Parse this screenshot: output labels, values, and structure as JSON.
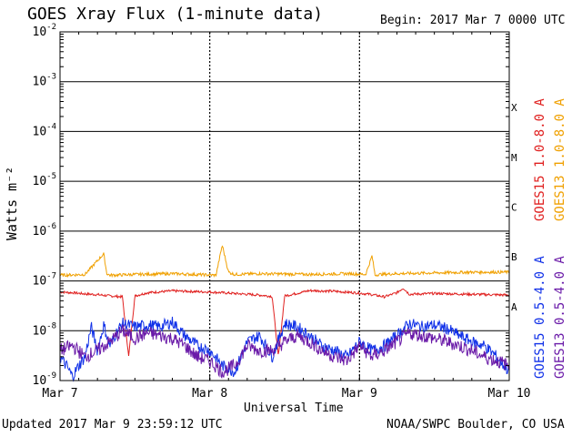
{
  "header": {
    "title": "GOES Xray Flux (1-minute data)",
    "begin": "Begin:  2017 Mar 7 0000 UTC"
  },
  "footer": {
    "updated": "Updated 2017 Mar  9 23:59:12 UTC",
    "credit": "NOAA/SWPC Boulder, CO USA"
  },
  "chart_data": {
    "type": "line",
    "xlabel": "Universal Time",
    "ylabel": "Watts m⁻²",
    "yscale": "log",
    "ylim": [
      1e-09,
      0.01
    ],
    "xlim": [
      0,
      72
    ],
    "x_units": "hours since 2017 Mar 7 0000 UTC",
    "x_ticks": [
      {
        "value": 0,
        "label": "Mar 7"
      },
      {
        "value": 24,
        "label": "Mar 8"
      },
      {
        "value": 48,
        "label": "Mar 9"
      },
      {
        "value": 72,
        "label": "Mar 10"
      }
    ],
    "y_ticks": [
      {
        "exp": -2,
        "label": "10",
        "sup": "-2"
      },
      {
        "exp": -3,
        "label": "10",
        "sup": "-3"
      },
      {
        "exp": -4,
        "label": "10",
        "sup": "-4"
      },
      {
        "exp": -5,
        "label": "10",
        "sup": "-5"
      },
      {
        "exp": -6,
        "label": "10",
        "sup": "-6"
      },
      {
        "exp": -7,
        "label": "10",
        "sup": "-7"
      },
      {
        "exp": -8,
        "label": "10",
        "sup": "-8"
      },
      {
        "exp": -9,
        "label": "10",
        "sup": "-9"
      }
    ],
    "flare_classes": [
      {
        "label": "X",
        "exp": -3.5
      },
      {
        "label": "M",
        "exp": -4.5
      },
      {
        "label": "C",
        "exp": -5.5
      },
      {
        "label": "B",
        "exp": -6.5
      },
      {
        "label": "A",
        "exp": -7.5
      }
    ],
    "grid": true,
    "series": [
      {
        "name": "GOES15 1.0-8.0 A",
        "color": "#e0201f",
        "x": [
          0,
          2,
          4,
          6,
          8,
          10,
          11,
          12,
          14,
          18,
          24,
          28,
          32,
          34,
          35,
          36,
          40,
          44,
          48,
          50,
          52,
          54,
          55,
          56,
          60,
          66,
          72
        ],
        "y": [
          6e-08,
          5.8e-08,
          5.5e-08,
          5.3e-08,
          5e-08,
          4.8e-08,
          3e-09,
          5e-08,
          5.8e-08,
          6.3e-08,
          6e-08,
          5.6e-08,
          5.2e-08,
          4.9e-08,
          3e-09,
          5e-08,
          6.4e-08,
          6.2e-08,
          5.7e-08,
          5.3e-08,
          4.8e-08,
          5.8e-08,
          7.2e-08,
          5.4e-08,
          5.6e-08,
          5.4e-08,
          5.2e-08
        ]
      },
      {
        "name": "GOES13 1.0-8.0 A",
        "color": "#f0a000",
        "x": [
          0,
          4,
          7,
          7.5,
          8,
          12,
          18,
          25,
          26,
          27,
          28,
          32,
          40,
          46,
          49,
          50,
          50.5,
          51,
          54,
          60,
          66,
          72
        ],
        "y": [
          1.3e-07,
          1.35e-07,
          3.5e-07,
          1.4e-07,
          1.3e-07,
          1.35e-07,
          1.4e-07,
          1.3e-07,
          5.2e-07,
          1.5e-07,
          1.35e-07,
          1.4e-07,
          1.35e-07,
          1.4e-07,
          1.35e-07,
          3.2e-07,
          1.3e-07,
          1.35e-07,
          1.4e-07,
          1.45e-07,
          1.5e-07,
          1.5e-07
        ]
      },
      {
        "name": "GOES15 0.5-4.0 A",
        "color": "#1030e8",
        "x": [
          0,
          1,
          2,
          3,
          4,
          5,
          6,
          7,
          8,
          9,
          10,
          12,
          14,
          16,
          18,
          20,
          22,
          24,
          26,
          28,
          30,
          32,
          34,
          36,
          38,
          40,
          42,
          44,
          46,
          48,
          50,
          52,
          54,
          56,
          58,
          60,
          62,
          64,
          66,
          68,
          70,
          72
        ],
        "y": [
          3e-09,
          2e-09,
          1.2e-09,
          2e-09,
          3e-09,
          1.2e-08,
          4e-09,
          1.3e-08,
          5e-09,
          9e-09,
          1.4e-08,
          1.2e-08,
          1.3e-08,
          1.2e-08,
          1.5e-08,
          8e-09,
          5e-09,
          4e-09,
          2e-09,
          1.5e-09,
          6e-09,
          8e-09,
          3e-09,
          1.4e-08,
          1.2e-08,
          8e-09,
          5e-09,
          4e-09,
          3e-09,
          6e-09,
          4e-09,
          5e-09,
          8e-09,
          1.4e-08,
          1.2e-08,
          1.3e-08,
          1.1e-08,
          8e-09,
          6e-09,
          5e-09,
          3e-09,
          1.5e-09
        ]
      },
      {
        "name": "GOES13 0.5-4.0 A",
        "color": "#6a1aa8",
        "x": [
          0,
          2,
          4,
          6,
          8,
          10,
          12,
          14,
          16,
          18,
          20,
          22,
          24,
          26,
          28,
          30,
          32,
          34,
          36,
          38,
          40,
          42,
          44,
          46,
          48,
          50,
          52,
          54,
          56,
          58,
          60,
          62,
          64,
          66,
          68,
          70,
          72
        ],
        "y": [
          4e-09,
          5e-09,
          3e-09,
          4e-09,
          6e-09,
          1e-08,
          7e-09,
          9e-09,
          8e-09,
          7e-09,
          5e-09,
          3e-09,
          2.5e-09,
          1.5e-09,
          2e-09,
          5e-09,
          4e-09,
          4e-09,
          6e-09,
          8e-09,
          6e-09,
          4e-09,
          3e-09,
          2.5e-09,
          5e-09,
          3e-09,
          4e-09,
          6e-09,
          9e-09,
          8e-09,
          7e-09,
          6e-09,
          5e-09,
          4e-09,
          3e-09,
          2.5e-09,
          2e-09
        ]
      }
    ]
  }
}
